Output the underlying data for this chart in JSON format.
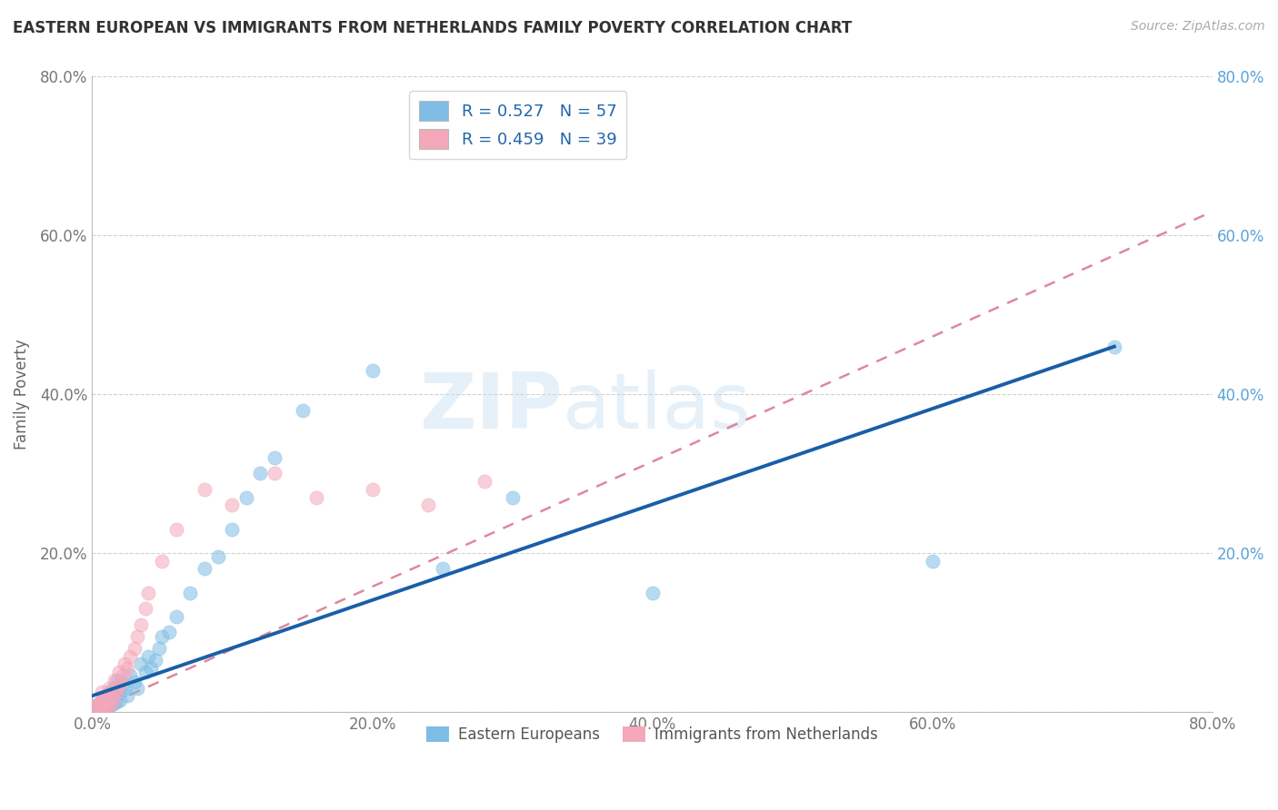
{
  "title": "EASTERN EUROPEAN VS IMMIGRANTS FROM NETHERLANDS FAMILY POVERTY CORRELATION CHART",
  "source_text": "Source: ZipAtlas.com",
  "ylabel": "Family Poverty",
  "xlim": [
    0.0,
    0.8
  ],
  "ylim": [
    0.0,
    0.8
  ],
  "xtick_labels": [
    "0.0%",
    "20.0%",
    "40.0%",
    "60.0%",
    "80.0%"
  ],
  "ytick_labels": [
    "",
    "20.0%",
    "40.0%",
    "60.0%",
    "80.0%"
  ],
  "xtick_vals": [
    0.0,
    0.2,
    0.4,
    0.6,
    0.8
  ],
  "ytick_vals": [
    0.0,
    0.2,
    0.4,
    0.6,
    0.8
  ],
  "R_blue": 0.527,
  "N_blue": 57,
  "R_pink": 0.459,
  "N_pink": 39,
  "blue_color": "#7fbde4",
  "pink_color": "#f4a7b9",
  "blue_line_color": "#1a5ea8",
  "pink_line_color": "#d4607a",
  "right_axis_color": "#5ba3d9",
  "legend_label_blue": "Eastern Europeans",
  "legend_label_pink": "Immigrants from Netherlands",
  "watermark": "ZIPatlas",
  "blue_scatter_x": [
    0.002,
    0.003,
    0.004,
    0.005,
    0.005,
    0.006,
    0.006,
    0.007,
    0.007,
    0.008,
    0.008,
    0.009,
    0.009,
    0.01,
    0.01,
    0.011,
    0.011,
    0.012,
    0.013,
    0.013,
    0.014,
    0.015,
    0.015,
    0.016,
    0.017,
    0.018,
    0.019,
    0.02,
    0.022,
    0.023,
    0.025,
    0.027,
    0.03,
    0.032,
    0.035,
    0.038,
    0.04,
    0.042,
    0.045,
    0.048,
    0.05,
    0.055,
    0.06,
    0.07,
    0.08,
    0.09,
    0.1,
    0.11,
    0.12,
    0.13,
    0.15,
    0.2,
    0.25,
    0.3,
    0.4,
    0.6,
    0.73
  ],
  "blue_scatter_y": [
    0.005,
    0.008,
    0.004,
    0.006,
    0.01,
    0.005,
    0.012,
    0.004,
    0.008,
    0.006,
    0.015,
    0.003,
    0.01,
    0.007,
    0.02,
    0.005,
    0.018,
    0.012,
    0.008,
    0.025,
    0.015,
    0.01,
    0.03,
    0.02,
    0.012,
    0.04,
    0.025,
    0.015,
    0.035,
    0.028,
    0.02,
    0.045,
    0.038,
    0.03,
    0.06,
    0.05,
    0.07,
    0.055,
    0.065,
    0.08,
    0.095,
    0.1,
    0.12,
    0.15,
    0.18,
    0.195,
    0.23,
    0.27,
    0.3,
    0.32,
    0.38,
    0.43,
    0.18,
    0.27,
    0.15,
    0.19,
    0.46
  ],
  "pink_scatter_x": [
    0.002,
    0.003,
    0.004,
    0.005,
    0.006,
    0.007,
    0.007,
    0.008,
    0.009,
    0.01,
    0.01,
    0.011,
    0.012,
    0.013,
    0.014,
    0.015,
    0.016,
    0.017,
    0.018,
    0.019,
    0.02,
    0.022,
    0.023,
    0.025,
    0.027,
    0.03,
    0.032,
    0.035,
    0.038,
    0.04,
    0.05,
    0.06,
    0.08,
    0.1,
    0.13,
    0.16,
    0.2,
    0.24,
    0.28
  ],
  "pink_scatter_y": [
    0.008,
    0.006,
    0.01,
    0.004,
    0.012,
    0.006,
    0.025,
    0.008,
    0.015,
    0.005,
    0.02,
    0.01,
    0.03,
    0.008,
    0.018,
    0.015,
    0.04,
    0.03,
    0.025,
    0.05,
    0.035,
    0.045,
    0.06,
    0.055,
    0.07,
    0.08,
    0.095,
    0.11,
    0.13,
    0.15,
    0.19,
    0.23,
    0.28,
    0.26,
    0.3,
    0.27,
    0.28,
    0.26,
    0.29
  ],
  "blue_line_x_start": 0.0,
  "blue_line_x_end": 0.73,
  "blue_line_y_start": 0.02,
  "blue_line_y_end": 0.46,
  "pink_line_x_start": 0.0,
  "pink_line_x_end": 0.8,
  "pink_line_y_start": 0.0,
  "pink_line_y_end": 0.63
}
